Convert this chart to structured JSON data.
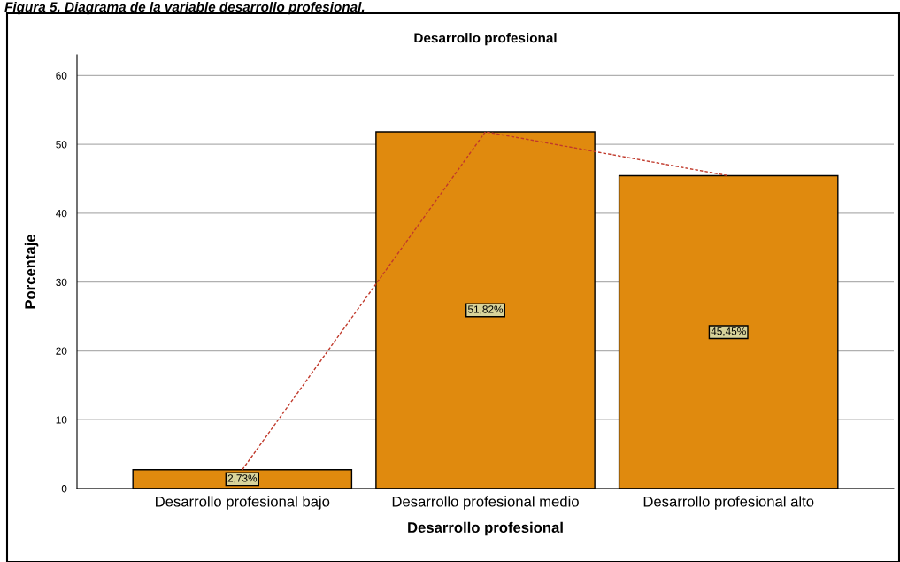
{
  "chart_data": {
    "type": "bar",
    "title": "Desarrollo profesional",
    "xlabel": "Desarrollo profesional",
    "ylabel": "Porcentaje",
    "annotations": [
      "Figura 5. Diagrama de la variable desarrollo profesional."
    ],
    "categories": [
      "Desarrollo profesional bajo",
      "Desarrollo profesional medio",
      "Desarrollo profesional alto"
    ],
    "series": [
      {
        "color": "#e08a0e",
        "values": [
          2.73,
          51.82,
          45.45
        ],
        "value_labels": [
          "2,73%",
          "51,82%",
          "45,45%"
        ]
      },
      {
        "type": "line",
        "color": "#c0392b",
        "values": [
          2.73,
          51.82,
          45.45
        ],
        "line_style": "dashed",
        "marker": "none"
      }
    ],
    "ylim": [
      0,
      63
    ],
    "yticks": [
      0,
      10,
      20,
      30,
      40,
      50,
      60
    ],
    "grid": "y",
    "legend": false
  }
}
